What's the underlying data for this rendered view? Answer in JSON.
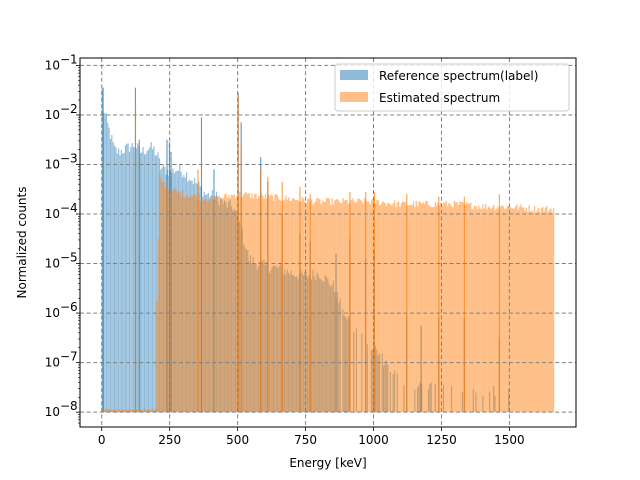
{
  "chart_data": {
    "type": "bar",
    "title": "",
    "xlabel": "Energy [keV]",
    "ylabel": "Normalized counts",
    "xlim": [
      -80,
      1745
    ],
    "ylim_log10": [
      -8.3,
      -0.85
    ],
    "yscale": "log",
    "grid": true,
    "legend_placement": "top-right",
    "x_ticks": [
      {
        "value": 0,
        "label": "0"
      },
      {
        "value": 250,
        "label": "250"
      },
      {
        "value": 500,
        "label": "500"
      },
      {
        "value": 750,
        "label": "750"
      },
      {
        "value": 1000,
        "label": "1000"
      },
      {
        "value": 1250,
        "label": "1250"
      },
      {
        "value": 1500,
        "label": "1500"
      }
    ],
    "y_ticks": [
      {
        "exp": -8,
        "base": "10",
        "sup": "−8"
      },
      {
        "exp": -7,
        "base": "10",
        "sup": "−7"
      },
      {
        "exp": -6,
        "base": "10",
        "sup": "−6"
      },
      {
        "exp": -5,
        "base": "10",
        "sup": "−5"
      },
      {
        "exp": -4,
        "base": "10",
        "sup": "−4"
      },
      {
        "exp": -3,
        "base": "10",
        "sup": "−3"
      },
      {
        "exp": -2,
        "base": "10",
        "sup": "−2"
      },
      {
        "exp": -1,
        "base": "10",
        "sup": "−1"
      }
    ],
    "series": [
      {
        "name": "Reference spectrum(label)",
        "color": "#1f77b4",
        "opacity": 0.5,
        "floor": 1e-08,
        "bin_width_keV": 5,
        "envelope_keV_log10": [
          [
            0,
            -1.5
          ],
          [
            5,
            -1.9
          ],
          [
            15,
            -2.1
          ],
          [
            30,
            -2.4
          ],
          [
            45,
            -2.7
          ],
          [
            60,
            -2.75
          ],
          [
            80,
            -2.7
          ],
          [
            100,
            -2.65
          ],
          [
            120,
            -2.6
          ],
          [
            140,
            -2.75
          ],
          [
            160,
            -2.7
          ],
          [
            175,
            -2.65
          ],
          [
            190,
            -2.7
          ],
          [
            205,
            -2.85
          ],
          [
            215,
            -3.05
          ],
          [
            230,
            -3.1
          ],
          [
            250,
            -3.15
          ],
          [
            275,
            -3.1
          ],
          [
            300,
            -3.15
          ],
          [
            320,
            -3.25
          ],
          [
            350,
            -3.4
          ],
          [
            380,
            -3.6
          ],
          [
            420,
            -3.65
          ],
          [
            450,
            -3.8
          ],
          [
            480,
            -3.85
          ],
          [
            500,
            -4.1
          ],
          [
            520,
            -4.5
          ],
          [
            540,
            -4.9
          ],
          [
            570,
            -5.0
          ],
          [
            600,
            -5.05
          ],
          [
            650,
            -5.1
          ],
          [
            700,
            -5.2
          ],
          [
            750,
            -5.25
          ],
          [
            800,
            -5.2
          ],
          [
            850,
            -5.45
          ],
          [
            880,
            -5.9
          ],
          [
            920,
            -6.25
          ],
          [
            960,
            -6.55
          ],
          [
            1000,
            -6.7
          ],
          [
            1100,
            -7.4
          ],
          [
            1500,
            -7.6
          ]
        ],
        "peaks_keV_log10": [
          [
            3,
            -1.45
          ],
          [
            122,
            -1.45
          ],
          [
            136,
            -2.5
          ],
          [
            238,
            -2.5
          ],
          [
            247,
            -2.55
          ],
          [
            253,
            -2.75
          ],
          [
            365,
            -2.05
          ],
          [
            411,
            -3.1
          ],
          [
            500,
            -1.55
          ],
          [
            511,
            -2.15
          ],
          [
            583,
            -2.85
          ],
          [
            609,
            -3.35
          ],
          [
            662,
            -4.0
          ],
          [
            727,
            -4.4
          ],
          [
            765,
            -4.55
          ],
          [
            860,
            -4.8
          ],
          [
            911,
            -4.5
          ],
          [
            969,
            -4.9
          ],
          [
            1001,
            -4.75
          ],
          [
            1120,
            -6.05
          ],
          [
            1173,
            -6.25
          ],
          [
            1238,
            -6.1
          ],
          [
            1332,
            -6.1
          ],
          [
            1461,
            -6.5
          ]
        ],
        "dropouts_start_keV": 880
      },
      {
        "name": "Estimated spectrum",
        "color": "#ff7f0e",
        "opacity": 0.5,
        "floor": 1e-08,
        "bin_width_keV": 5,
        "start_keV": 200,
        "end_keV": 1665,
        "envelope_keV_log10": [
          [
            200,
            -5.8
          ],
          [
            210,
            -3.25
          ],
          [
            240,
            -3.5
          ],
          [
            300,
            -3.6
          ],
          [
            400,
            -3.7
          ],
          [
            500,
            -3.6
          ],
          [
            600,
            -3.65
          ],
          [
            700,
            -3.7
          ],
          [
            800,
            -3.75
          ],
          [
            900,
            -3.75
          ],
          [
            1000,
            -3.75
          ],
          [
            1100,
            -3.8
          ],
          [
            1200,
            -3.8
          ],
          [
            1300,
            -3.8
          ],
          [
            1400,
            -3.85
          ],
          [
            1500,
            -3.85
          ],
          [
            1600,
            -3.9
          ],
          [
            1665,
            -3.9
          ]
        ],
        "peaks_keV_log10": [
          [
            122,
            -1.8
          ],
          [
            239,
            -3.3
          ],
          [
            352,
            -3.1
          ],
          [
            500,
            -1.6
          ],
          [
            511,
            -2.6
          ],
          [
            583,
            -3.05
          ],
          [
            609,
            -3.25
          ],
          [
            662,
            -3.35
          ],
          [
            727,
            -3.45
          ],
          [
            765,
            -3.6
          ],
          [
            911,
            -3.55
          ],
          [
            969,
            -3.55
          ],
          [
            1001,
            -3.55
          ],
          [
            1120,
            -3.6
          ],
          [
            1238,
            -3.65
          ],
          [
            1332,
            -3.65
          ],
          [
            1461,
            -3.6
          ]
        ]
      }
    ]
  }
}
